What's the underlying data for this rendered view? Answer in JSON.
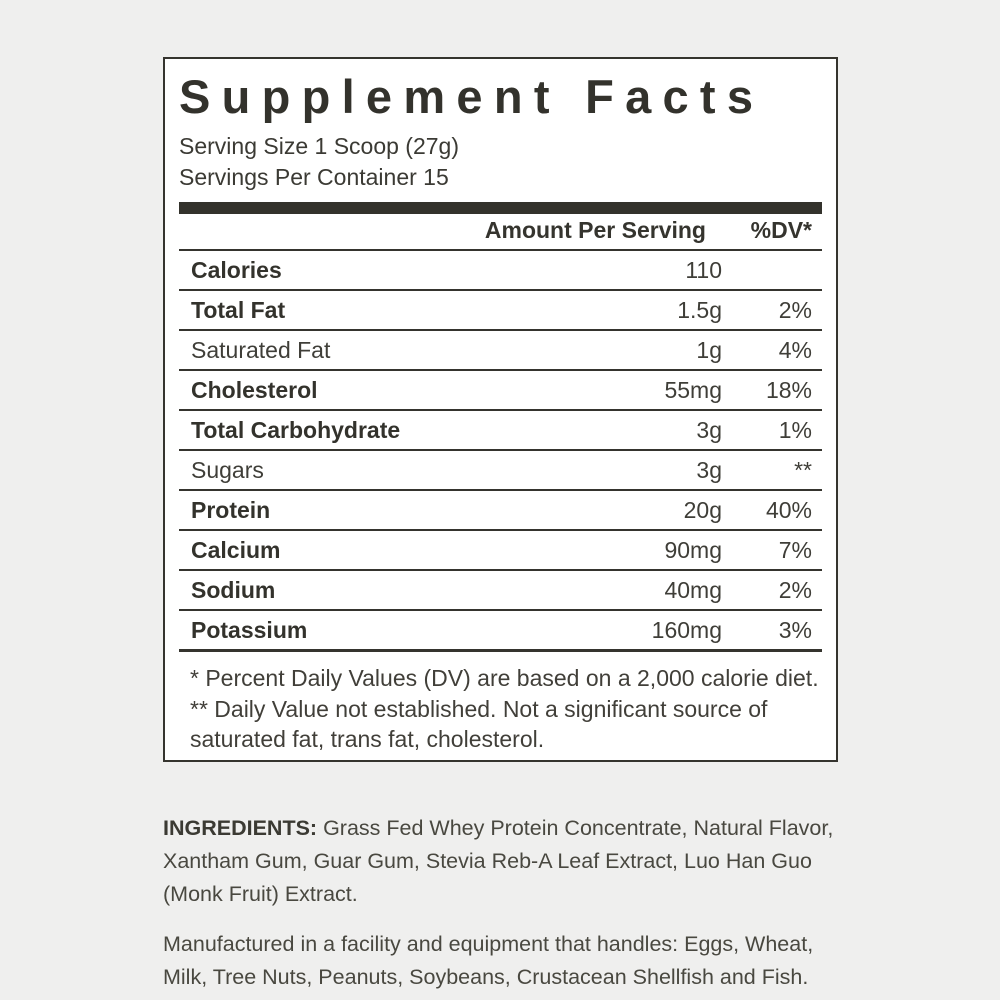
{
  "label": {
    "title": "Supplement Facts",
    "serving_size": "Serving Size 1 Scoop (27g)",
    "servings_per_container": "Servings Per Container 15",
    "columns": {
      "amount": "Amount Per Serving",
      "dv": "%DV*"
    },
    "rows": [
      {
        "name": "Calories",
        "amount": "110",
        "dv": "",
        "bold": true
      },
      {
        "name": "Total Fat",
        "amount": "1.5g",
        "dv": "2%",
        "bold": true
      },
      {
        "name": "Saturated Fat",
        "amount": "1g",
        "dv": "4%",
        "bold": false
      },
      {
        "name": "Cholesterol",
        "amount": "55mg",
        "dv": "18%",
        "bold": true
      },
      {
        "name": "Total Carbohydrate",
        "amount": "3g",
        "dv": "1%",
        "bold": true
      },
      {
        "name": "Sugars",
        "amount": "3g",
        "dv": "**",
        "bold": false
      },
      {
        "name": "Protein",
        "amount": "20g",
        "dv": "40%",
        "bold": true
      },
      {
        "name": "Calcium",
        "amount": "90mg",
        "dv": "7%",
        "bold": true
      },
      {
        "name": "Sodium",
        "amount": "40mg",
        "dv": "2%",
        "bold": true
      },
      {
        "name": "Potassium",
        "amount": "160mg",
        "dv": "3%",
        "bold": true
      }
    ],
    "footnote": "* Percent Daily Values (DV) are based on a 2,000 calorie diet. ** Daily Value not established. Not a significant source of saturated fat, trans fat, cholesterol."
  },
  "ingredients": {
    "label": "INGREDIENTS:",
    "text": " Grass Fed Whey Protein Concentrate, Natural Flavor, Xantham Gum, Guar Gum, Stevia Reb-A Leaf Extract, Luo Han Guo (Monk Fruit) Extract."
  },
  "manufactured_text": "Manufactured in a facility and equipment that handles: Eggs, Wheat, Milk, Tree Nuts, Peanuts, Soybeans, Crustacean Shellfish and Fish.",
  "colors": {
    "background": "#efefee",
    "panel": "#ffffff",
    "ink": "#35342e",
    "secondary_text": "#494840"
  }
}
